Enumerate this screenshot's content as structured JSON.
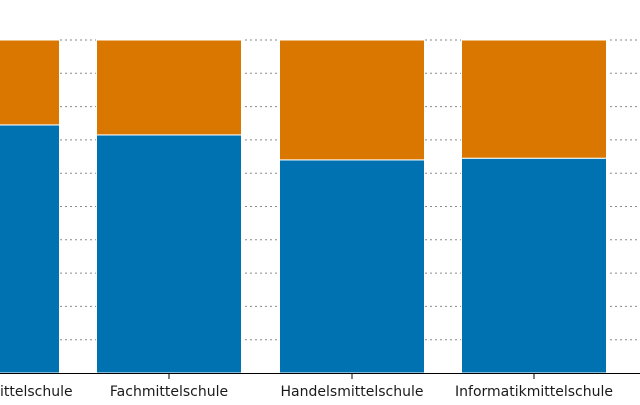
{
  "chart_data": {
    "type": "bar",
    "stacked": true,
    "normalized": true,
    "categories": [
      "Mittelschule",
      "Fachmittelschule",
      "Handelsmittelschule",
      "Informatikmittelschule"
    ],
    "category_labels_visible": [
      "ittelschule",
      "Fachmittelschule",
      "Handelsmittelschule",
      "Informatikmittelschule"
    ],
    "series": [
      {
        "values": [
          0.745,
          0.715,
          0.64,
          0.645
        ],
        "color": "#0072b2"
      },
      {
        "values": [
          0.255,
          0.285,
          0.36,
          0.355
        ],
        "color": "#d97700"
      }
    ],
    "ylim": [
      0,
      1
    ],
    "grid": "horizontal-dotted",
    "gridlines": 10,
    "title": "",
    "xlabel": "",
    "ylabel": ""
  }
}
